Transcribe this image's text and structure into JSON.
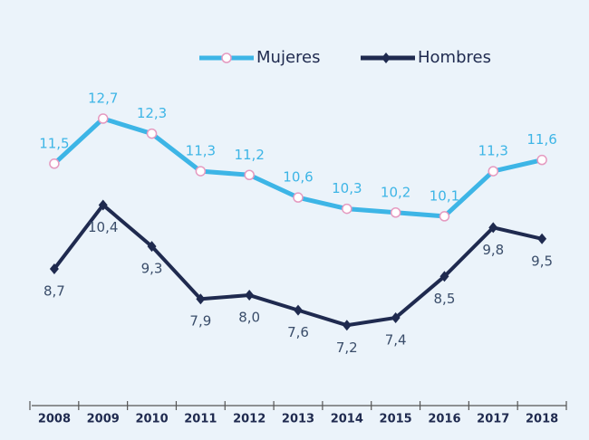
{
  "chart_data": {
    "type": "line",
    "categories": [
      "2008",
      "2009",
      "2010",
      "2011",
      "2012",
      "2013",
      "2014",
      "2015",
      "2016",
      "2017",
      "2018"
    ],
    "series": [
      {
        "name": "Mujeres",
        "color": "#3db5e6",
        "values": [
          11.5,
          12.7,
          12.3,
          11.3,
          11.2,
          10.6,
          10.3,
          10.2,
          10.1,
          11.3,
          11.6
        ],
        "value_labels": [
          "11,5",
          "12,7",
          "12,3",
          "11,3",
          "11,2",
          "10,6",
          "10,3",
          "10,2",
          "10,1",
          "11,3",
          "11,6"
        ]
      },
      {
        "name": "Hombres",
        "color": "#1f2a4f",
        "values": [
          8.7,
          10.4,
          9.3,
          7.9,
          8.0,
          7.6,
          7.2,
          7.4,
          8.5,
          9.8,
          9.5
        ],
        "value_labels": [
          "8,7",
          "10,4",
          "9,3",
          "7,9",
          "8,0",
          "7,6",
          "7,2",
          "7,4",
          "8,5",
          "9,8",
          "9,5"
        ]
      }
    ],
    "legend": "top"
  }
}
